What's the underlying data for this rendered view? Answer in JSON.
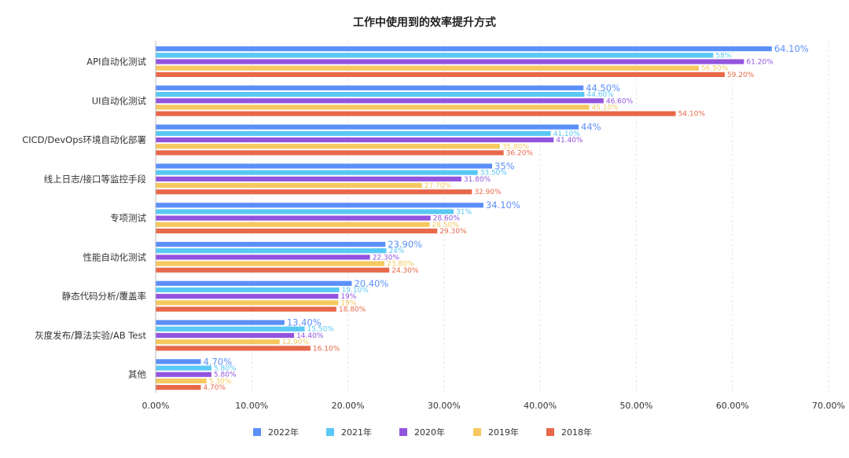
{
  "chart_data": {
    "type": "bar",
    "orientation": "horizontal",
    "title": "工作中使用到的效率提升方式",
    "xlabel": "",
    "ylabel": "",
    "xlim": [
      0,
      70
    ],
    "x_ticks": [
      "0.00%",
      "10.00%",
      "20.00%",
      "30.00%",
      "40.00%",
      "50.00%",
      "60.00%",
      "70.00%"
    ],
    "legend_position": "bottom",
    "grid": true,
    "categories": [
      "API自动化测试",
      "UI自动化测试",
      "CICD/DevOps环境自动化部署",
      "线上日志/接口等监控手段",
      "专项测试",
      "性能自动化测试",
      "静态代码分析/覆盖率",
      "灰度发布/算法实验/AB Test",
      "其他"
    ],
    "series": [
      {
        "name": "2022年",
        "color": "#5b8ff9",
        "values": [
          64.1,
          44.5,
          44,
          35,
          34.1,
          23.9,
          20.4,
          13.4,
          4.7
        ],
        "labels": [
          "64.10%",
          "44.50%",
          "44%",
          "35%",
          "34.10%",
          "23.90%",
          "20.40%",
          "13.40%",
          "4.70%"
        ]
      },
      {
        "name": "2021年",
        "color": "#5ac8f5",
        "values": [
          58,
          44.6,
          41.1,
          33.5,
          31,
          24,
          19.1,
          15.5,
          5.8
        ],
        "labels": [
          "58%",
          "44.60%",
          "41.10%",
          "33.50%",
          "31%",
          "24%",
          "19.10%",
          "15.50%",
          "5.80%"
        ]
      },
      {
        "name": "2020年",
        "color": "#9254de",
        "values": [
          61.2,
          46.6,
          41.4,
          31.8,
          28.6,
          22.3,
          19,
          14.4,
          5.8
        ],
        "labels": [
          "61.20%",
          "46.60%",
          "41.40%",
          "31.80%",
          "28.60%",
          "22.30%",
          "19%",
          "14.40%",
          "5.80%"
        ]
      },
      {
        "name": "2019年",
        "color": "#f6c85f",
        "values": [
          56.5,
          45.1,
          35.8,
          27.7,
          28.5,
          23.8,
          19,
          12.9,
          5.3
        ],
        "labels": [
          "56.50%",
          "45.10%",
          "35.80%",
          "27.70%",
          "28.50%",
          "23.80%",
          "19%",
          "12.90%",
          "5.30%"
        ]
      },
      {
        "name": "2018年",
        "color": "#e8684a",
        "values": [
          59.2,
          54.1,
          36.2,
          32.9,
          29.3,
          24.3,
          18.8,
          16.1,
          4.7
        ],
        "labels": [
          "59.20%",
          "54.10%",
          "36.20%",
          "32.90%",
          "29.30%",
          "24.30%",
          "18.80%",
          "16.10%",
          "4.70%"
        ]
      }
    ]
  }
}
